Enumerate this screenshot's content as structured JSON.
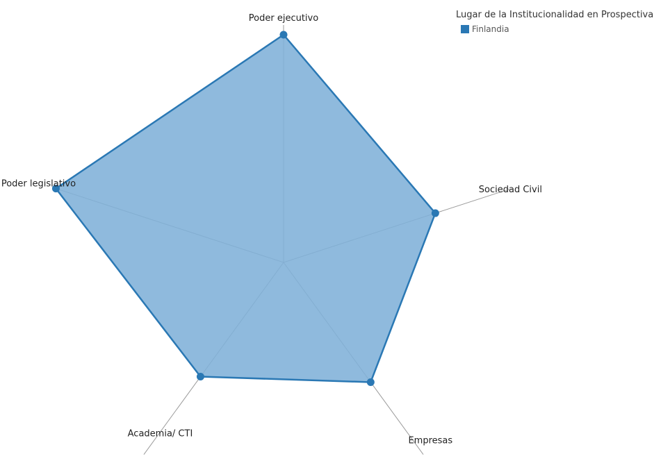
{
  "chart_data": {
    "type": "radar",
    "title": "",
    "axes": [
      "Poder ejecutivo",
      "Sociedad Civil",
      "Empresas",
      "Academia/ CTI",
      "Poder legislativo"
    ],
    "range": [
      0,
      10
    ],
    "series": [
      {
        "name": "Finlandia",
        "values": [
          10,
          7,
          6.5,
          6.2,
          10.5
        ]
      }
    ],
    "legend": {
      "title": "Lugar de la Institucionalidad en Prospectiva",
      "position": "top-right"
    }
  },
  "colors": {
    "series_stroke": "#2a78b4",
    "series_fill": "#7fb0d8",
    "spoke": "#9a9a9a"
  }
}
